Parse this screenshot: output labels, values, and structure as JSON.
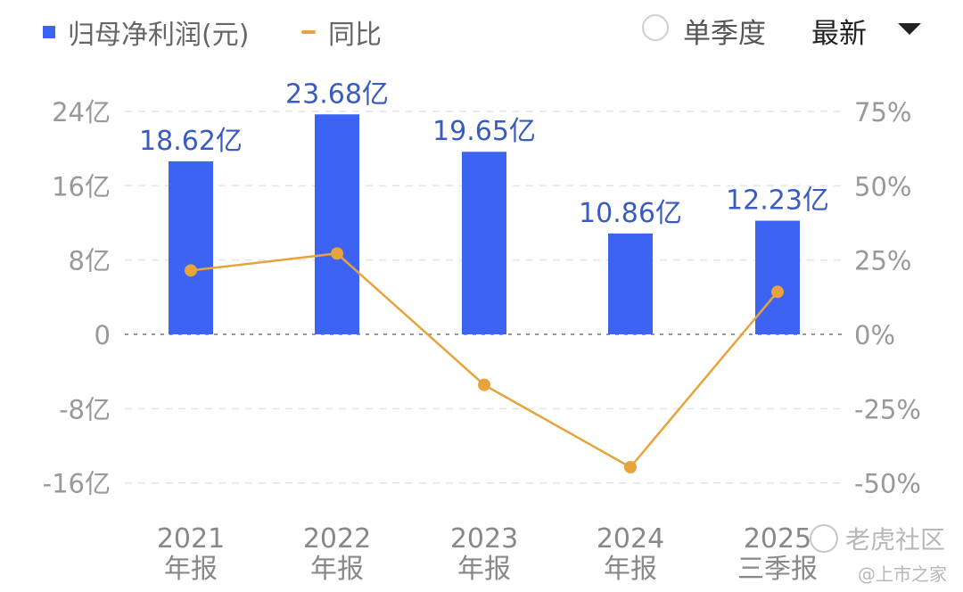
{
  "legend": {
    "bar_label": "归母净利润(元)",
    "line_label": "同比"
  },
  "controls": {
    "single_quarter": "单季度",
    "latest": "最新"
  },
  "watermark": {
    "main": "老虎社区",
    "sub": "@上市之家"
  },
  "colors": {
    "bar": "#3d63f2",
    "line": "#e8a43c",
    "axis_text": "#999999",
    "label_text": "#3a5bbf"
  },
  "chart_data": {
    "type": "bar",
    "categories": [
      "2021\n年报",
      "2022\n年报",
      "2023\n年报",
      "2024\n年报",
      "2025\n三季报"
    ],
    "category_lines": [
      [
        "2021",
        "年报"
      ],
      [
        "2022",
        "年报"
      ],
      [
        "2023",
        "年报"
      ],
      [
        "2024",
        "年报"
      ],
      [
        "2025",
        "三季报"
      ]
    ],
    "series": [
      {
        "name": "归母净利润(元)",
        "type": "bar",
        "values": [
          18.62,
          23.68,
          19.65,
          10.86,
          12.23
        ],
        "axis": "left",
        "data_labels": [
          "18.62亿",
          "23.68亿",
          "19.65亿",
          "10.86亿",
          "12.23亿"
        ]
      },
      {
        "name": "同比",
        "type": "line",
        "values": [
          21.5,
          27.2,
          -17.0,
          -44.7,
          14.3
        ],
        "axis": "right"
      }
    ],
    "left_axis": {
      "ticks": [
        24,
        16,
        8,
        0,
        -8,
        -16
      ],
      "tick_labels": [
        "24亿",
        "16亿",
        "8亿",
        "0",
        "-8亿",
        "-16亿"
      ],
      "range": [
        -16,
        24
      ]
    },
    "right_axis": {
      "ticks": [
        75,
        50,
        25,
        0,
        -25,
        -50
      ],
      "tick_labels": [
        "75%",
        "50%",
        "25%",
        "0%",
        "-25%",
        "-50%"
      ],
      "range": [
        -50,
        75
      ]
    },
    "grid": true,
    "legend_position": "top-left"
  }
}
